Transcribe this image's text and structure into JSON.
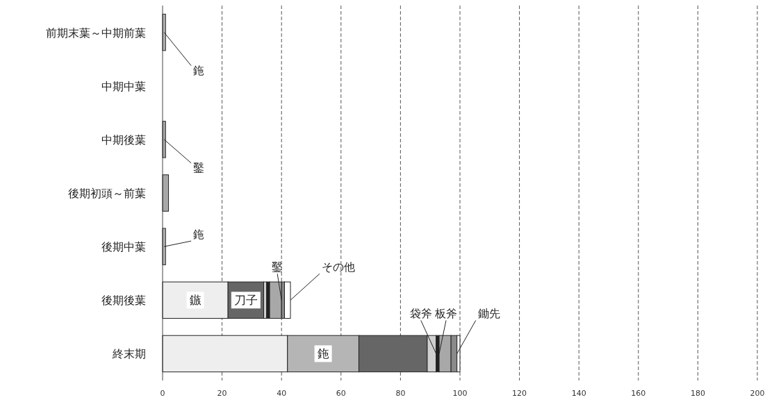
{
  "chart_data": {
    "type": "bar",
    "orientation": "horizontal",
    "stacked": true,
    "categories": [
      "前期末葉～中期前葉",
      "中期中葉",
      "中期後葉",
      "後期初頭～前葉",
      "後期中葉",
      "後期後葉",
      "終末期"
    ],
    "series": [
      {
        "color": "#eeeeee",
        "values": [
          0,
          0,
          0,
          0,
          0,
          22,
          42
        ]
      },
      {
        "color": "#b5b5b5",
        "values": [
          1,
          0,
          0,
          0,
          1,
          0,
          24
        ]
      },
      {
        "color": "#666666",
        "values": [
          0,
          0,
          0,
          0,
          0,
          12,
          23
        ]
      },
      {
        "color": "#d0d0d0",
        "values": [
          0,
          0,
          0,
          0,
          0,
          1,
          3
        ]
      },
      {
        "color": "#222222",
        "values": [
          0,
          0,
          0,
          0,
          0,
          1,
          1
        ]
      },
      {
        "color": "#a8a8a8",
        "values": [
          0,
          0,
          1,
          2,
          0,
          4,
          4
        ]
      },
      {
        "color": "#8a8a8a",
        "values": [
          0,
          0,
          0,
          0,
          0,
          1,
          2
        ]
      },
      {
        "color": "#ffffff",
        "values": [
          0,
          0,
          0,
          0,
          0,
          2,
          1
        ]
      }
    ],
    "xlim": [
      0,
      200
    ],
    "xticks": [
      0,
      20,
      40,
      60,
      80,
      100,
      120,
      140,
      160,
      180,
      200
    ],
    "grid": "x",
    "annotations": [
      {
        "text": "鉇",
        "x": 0.5,
        "y": "前期末葉～中期前葉"
      },
      {
        "text": "鑿",
        "x": 0.5,
        "y": "中期後葉"
      },
      {
        "text": "鉇",
        "x": 0.5,
        "y": "後期中葉"
      },
      {
        "text": "鑿",
        "x": 40,
        "y": "後期後葉"
      },
      {
        "text": "その他",
        "x": 43,
        "y": "後期後葉"
      },
      {
        "text": "鏃",
        "x": 11,
        "y": "後期後葉"
      },
      {
        "text": "刀子",
        "x": 28,
        "y": "後期後葉"
      },
      {
        "text": "鉇",
        "x": 54,
        "y": "終末期"
      },
      {
        "text": "袋斧",
        "x": 92,
        "y": "終末期"
      },
      {
        "text": "板斧",
        "x": 93,
        "y": "終末期"
      },
      {
        "text": "鋤先",
        "x": 99,
        "y": "終末期"
      }
    ]
  }
}
